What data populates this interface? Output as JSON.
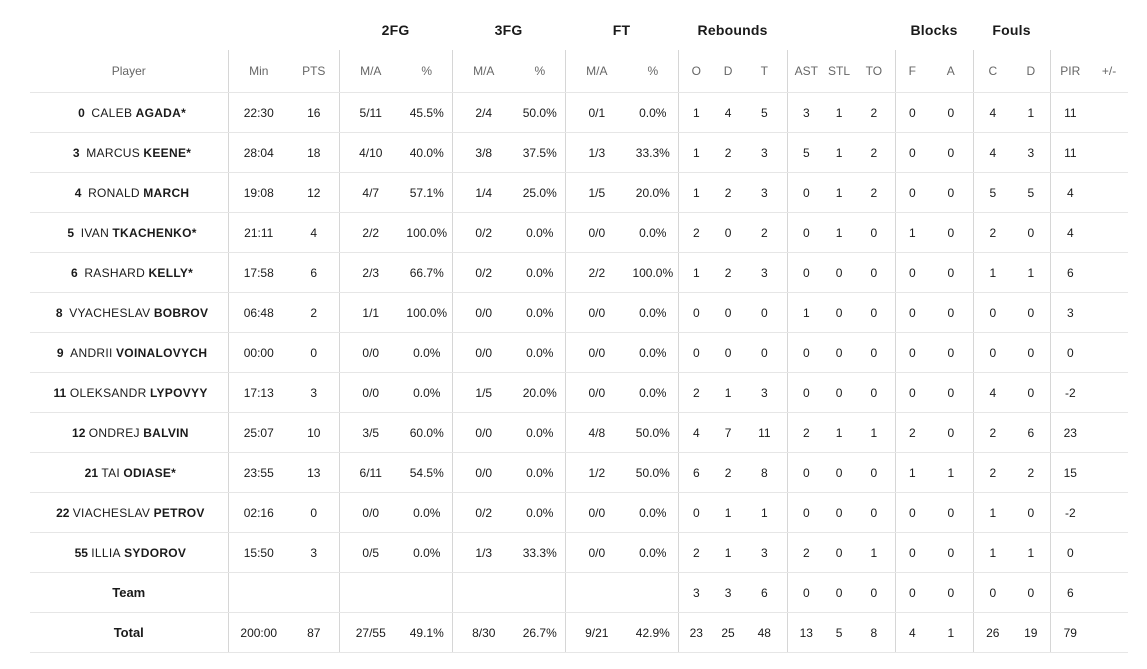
{
  "groups": [
    {
      "key": "2fg",
      "label": "2FG"
    },
    {
      "key": "3fg",
      "label": "3FG"
    },
    {
      "key": "ft",
      "label": "FT"
    },
    {
      "key": "reb",
      "label": "Rebounds"
    },
    {
      "key": "blk",
      "label": "Blocks"
    },
    {
      "key": "fls",
      "label": "Fouls"
    }
  ],
  "headers": {
    "player": "Player",
    "min": "Min",
    "pts": "PTS",
    "fg2_ma": "M/A",
    "fg2_pct": "%",
    "fg3_ma": "M/A",
    "fg3_pct": "%",
    "ft_ma": "M/A",
    "ft_pct": "%",
    "reb_o": "O",
    "reb_d": "D",
    "reb_t": "T",
    "ast": "AST",
    "stl": "STL",
    "to": "TO",
    "blk_f": "F",
    "blk_a": "A",
    "fls_c": "C",
    "fls_d": "D",
    "pir": "PIR",
    "pm": "+/-"
  },
  "players": [
    {
      "num": "0",
      "first": "Caleb",
      "last": "Agada*",
      "min": "22:30",
      "pts": "16",
      "fg2_ma": "5/11",
      "fg2_pct": "45.5%",
      "fg3_ma": "2/4",
      "fg3_pct": "50.0%",
      "ft_ma": "0/1",
      "ft_pct": "0.0%",
      "reb_o": "1",
      "reb_d": "4",
      "reb_t": "5",
      "ast": "3",
      "stl": "1",
      "to": "2",
      "blk_f": "0",
      "blk_a": "0",
      "fls_c": "4",
      "fls_d": "1",
      "pir": "11",
      "pm": ""
    },
    {
      "num": "3",
      "first": "Marcus",
      "last": "Keene*",
      "min": "28:04",
      "pts": "18",
      "fg2_ma": "4/10",
      "fg2_pct": "40.0%",
      "fg3_ma": "3/8",
      "fg3_pct": "37.5%",
      "ft_ma": "1/3",
      "ft_pct": "33.3%",
      "reb_o": "1",
      "reb_d": "2",
      "reb_t": "3",
      "ast": "5",
      "stl": "1",
      "to": "2",
      "blk_f": "0",
      "blk_a": "0",
      "fls_c": "4",
      "fls_d": "3",
      "pir": "11",
      "pm": ""
    },
    {
      "num": "4",
      "first": "Ronald",
      "last": "March",
      "min": "19:08",
      "pts": "12",
      "fg2_ma": "4/7",
      "fg2_pct": "57.1%",
      "fg3_ma": "1/4",
      "fg3_pct": "25.0%",
      "ft_ma": "1/5",
      "ft_pct": "20.0%",
      "reb_o": "1",
      "reb_d": "2",
      "reb_t": "3",
      "ast": "0",
      "stl": "1",
      "to": "2",
      "blk_f": "0",
      "blk_a": "0",
      "fls_c": "5",
      "fls_d": "5",
      "pir": "4",
      "pm": ""
    },
    {
      "num": "5",
      "first": "Ivan",
      "last": "Tkachenko*",
      "min": "21:11",
      "pts": "4",
      "fg2_ma": "2/2",
      "fg2_pct": "100.0%",
      "fg3_ma": "0/2",
      "fg3_pct": "0.0%",
      "ft_ma": "0/0",
      "ft_pct": "0.0%",
      "reb_o": "2",
      "reb_d": "0",
      "reb_t": "2",
      "ast": "0",
      "stl": "1",
      "to": "0",
      "blk_f": "1",
      "blk_a": "0",
      "fls_c": "2",
      "fls_d": "0",
      "pir": "4",
      "pm": ""
    },
    {
      "num": "6",
      "first": "Rashard",
      "last": "Kelly*",
      "min": "17:58",
      "pts": "6",
      "fg2_ma": "2/3",
      "fg2_pct": "66.7%",
      "fg3_ma": "0/2",
      "fg3_pct": "0.0%",
      "ft_ma": "2/2",
      "ft_pct": "100.0%",
      "reb_o": "1",
      "reb_d": "2",
      "reb_t": "3",
      "ast": "0",
      "stl": "0",
      "to": "0",
      "blk_f": "0",
      "blk_a": "0",
      "fls_c": "1",
      "fls_d": "1",
      "pir": "6",
      "pm": ""
    },
    {
      "num": "8",
      "first": "Vyacheslav",
      "last": "Bobrov",
      "min": "06:48",
      "pts": "2",
      "fg2_ma": "1/1",
      "fg2_pct": "100.0%",
      "fg3_ma": "0/0",
      "fg3_pct": "0.0%",
      "ft_ma": "0/0",
      "ft_pct": "0.0%",
      "reb_o": "0",
      "reb_d": "0",
      "reb_t": "0",
      "ast": "1",
      "stl": "0",
      "to": "0",
      "blk_f": "0",
      "blk_a": "0",
      "fls_c": "0",
      "fls_d": "0",
      "pir": "3",
      "pm": ""
    },
    {
      "num": "9",
      "first": "Andrii",
      "last": "Voinalovych",
      "min": "00:00",
      "pts": "0",
      "fg2_ma": "0/0",
      "fg2_pct": "0.0%",
      "fg3_ma": "0/0",
      "fg3_pct": "0.0%",
      "ft_ma": "0/0",
      "ft_pct": "0.0%",
      "reb_o": "0",
      "reb_d": "0",
      "reb_t": "0",
      "ast": "0",
      "stl": "0",
      "to": "0",
      "blk_f": "0",
      "blk_a": "0",
      "fls_c": "0",
      "fls_d": "0",
      "pir": "0",
      "pm": ""
    },
    {
      "num": "11",
      "first": "Oleksandr",
      "last": "Lypovyy",
      "min": "17:13",
      "pts": "3",
      "fg2_ma": "0/0",
      "fg2_pct": "0.0%",
      "fg3_ma": "1/5",
      "fg3_pct": "20.0%",
      "ft_ma": "0/0",
      "ft_pct": "0.0%",
      "reb_o": "2",
      "reb_d": "1",
      "reb_t": "3",
      "ast": "0",
      "stl": "0",
      "to": "0",
      "blk_f": "0",
      "blk_a": "0",
      "fls_c": "4",
      "fls_d": "0",
      "pir": "-2",
      "pm": ""
    },
    {
      "num": "12",
      "first": "Ondrej",
      "last": "Balvin",
      "min": "25:07",
      "pts": "10",
      "fg2_ma": "3/5",
      "fg2_pct": "60.0%",
      "fg3_ma": "0/0",
      "fg3_pct": "0.0%",
      "ft_ma": "4/8",
      "ft_pct": "50.0%",
      "reb_o": "4",
      "reb_d": "7",
      "reb_t": "11",
      "ast": "2",
      "stl": "1",
      "to": "1",
      "blk_f": "2",
      "blk_a": "0",
      "fls_c": "2",
      "fls_d": "6",
      "pir": "23",
      "pm": ""
    },
    {
      "num": "21",
      "first": "Tai",
      "last": "Odiase*",
      "min": "23:55",
      "pts": "13",
      "fg2_ma": "6/11",
      "fg2_pct": "54.5%",
      "fg3_ma": "0/0",
      "fg3_pct": "0.0%",
      "ft_ma": "1/2",
      "ft_pct": "50.0%",
      "reb_o": "6",
      "reb_d": "2",
      "reb_t": "8",
      "ast": "0",
      "stl": "0",
      "to": "0",
      "blk_f": "1",
      "blk_a": "1",
      "fls_c": "2",
      "fls_d": "2",
      "pir": "15",
      "pm": ""
    },
    {
      "num": "22",
      "first": "Viacheslav",
      "last": "Petrov",
      "min": "02:16",
      "pts": "0",
      "fg2_ma": "0/0",
      "fg2_pct": "0.0%",
      "fg3_ma": "0/2",
      "fg3_pct": "0.0%",
      "ft_ma": "0/0",
      "ft_pct": "0.0%",
      "reb_o": "0",
      "reb_d": "1",
      "reb_t": "1",
      "ast": "0",
      "stl": "0",
      "to": "0",
      "blk_f": "0",
      "blk_a": "0",
      "fls_c": "1",
      "fls_d": "0",
      "pir": "-2",
      "pm": ""
    },
    {
      "num": "55",
      "first": "Illia",
      "last": "Sydorov",
      "min": "15:50",
      "pts": "3",
      "fg2_ma": "0/5",
      "fg2_pct": "0.0%",
      "fg3_ma": "1/3",
      "fg3_pct": "33.3%",
      "ft_ma": "0/0",
      "ft_pct": "0.0%",
      "reb_o": "2",
      "reb_d": "1",
      "reb_t": "3",
      "ast": "2",
      "stl": "0",
      "to": "1",
      "blk_f": "0",
      "blk_a": "0",
      "fls_c": "1",
      "fls_d": "1",
      "pir": "0",
      "pm": ""
    }
  ],
  "team": {
    "label": "Team",
    "min": "",
    "pts": "",
    "fg2_ma": "",
    "fg2_pct": "",
    "fg3_ma": "",
    "fg3_pct": "",
    "ft_ma": "",
    "ft_pct": "",
    "reb_o": "3",
    "reb_d": "3",
    "reb_t": "6",
    "ast": "0",
    "stl": "0",
    "to": "0",
    "blk_f": "0",
    "blk_a": "0",
    "fls_c": "0",
    "fls_d": "0",
    "pir": "6",
    "pm": ""
  },
  "total": {
    "label": "Total",
    "min": "200:00",
    "pts": "87",
    "fg2_ma": "27/55",
    "fg2_pct": "49.1%",
    "fg3_ma": "8/30",
    "fg3_pct": "26.7%",
    "ft_ma": "9/21",
    "ft_pct": "42.9%",
    "reb_o": "23",
    "reb_d": "25",
    "reb_t": "48",
    "ast": "13",
    "stl": "5",
    "to": "8",
    "blk_f": "4",
    "blk_a": "1",
    "fls_c": "26",
    "fls_d": "19",
    "pir": "79",
    "pm": ""
  }
}
